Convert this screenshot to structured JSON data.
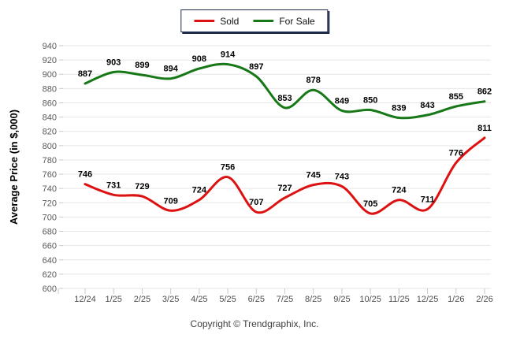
{
  "legend": {
    "items": [
      {
        "label": "Sold",
        "color": "#dd1111"
      },
      {
        "label": "For Sale",
        "color": "#177817"
      }
    ]
  },
  "y_axis_title": "Average Price (in $,000)",
  "footer": {
    "copyright": "Copyright © Trendgraphix, Inc."
  },
  "chart_data": {
    "type": "line",
    "title": "",
    "xlabel": "",
    "ylabel": "Average Price (in $,000)",
    "categories": [
      "12/24",
      "1/25",
      "2/25",
      "3/25",
      "4/25",
      "5/25",
      "6/25",
      "7/25",
      "8/25",
      "9/25",
      "10/25",
      "11/25",
      "12/25",
      "1/26",
      "2/26"
    ],
    "series": [
      {
        "name": "Sold",
        "color": "#dd1111",
        "values": [
          746,
          731,
          729,
          709,
          724,
          756,
          707,
          727,
          745,
          743,
          705,
          724,
          711,
          776,
          811
        ]
      },
      {
        "name": "For Sale",
        "color": "#177817",
        "values": [
          887,
          903,
          899,
          894,
          908,
          914,
          897,
          853,
          878,
          849,
          850,
          839,
          843,
          855,
          862
        ]
      }
    ],
    "ylim": [
      600,
      940
    ],
    "ytick_step": 20,
    "grid": true,
    "smooth": true,
    "legend_position": "top",
    "point_labels": true
  }
}
